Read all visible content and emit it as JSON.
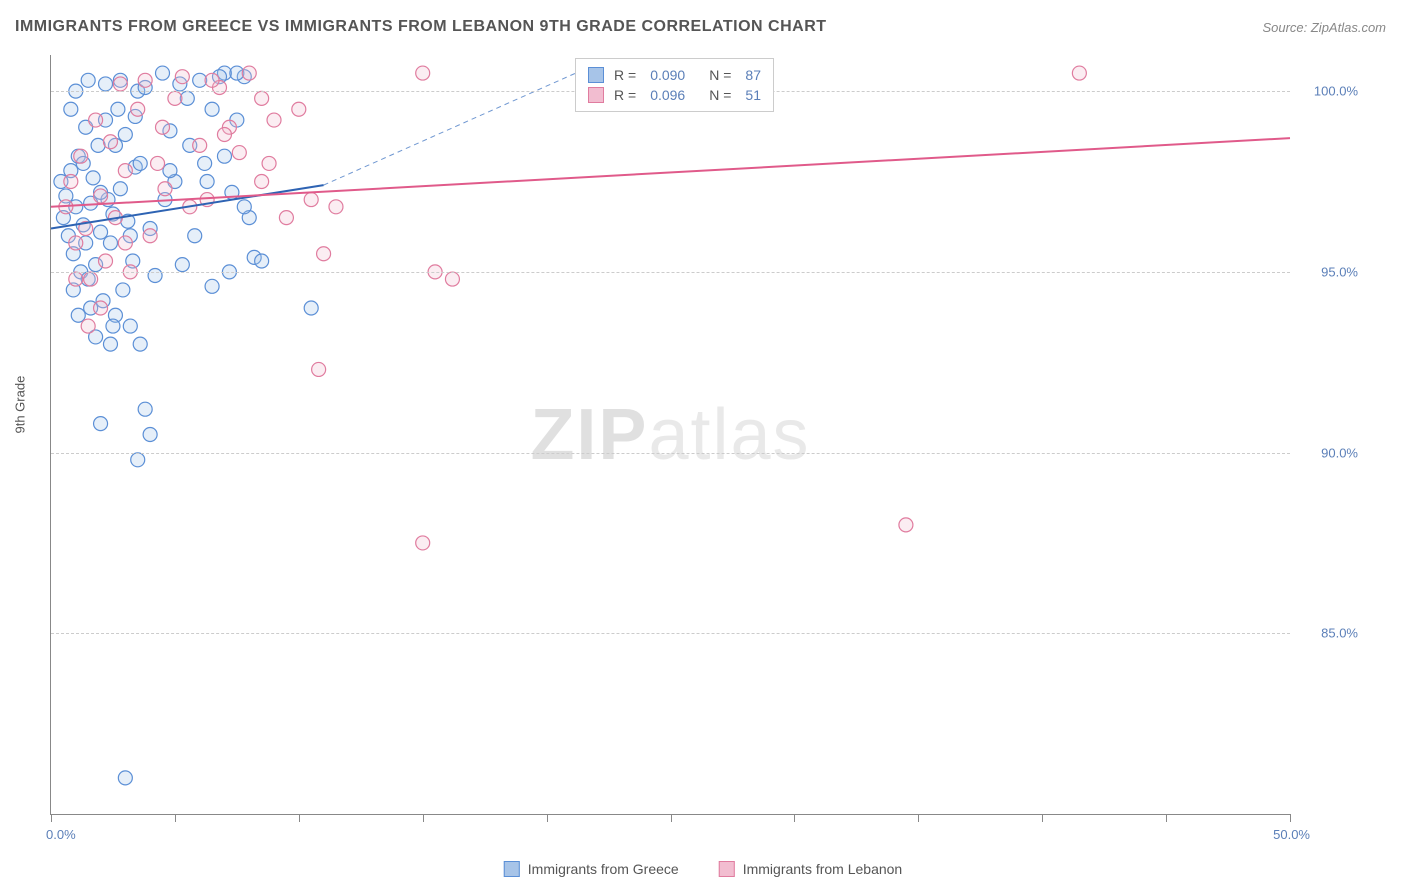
{
  "title": "IMMIGRANTS FROM GREECE VS IMMIGRANTS FROM LEBANON 9TH GRADE CORRELATION CHART",
  "source_label": "Source: ZipAtlas.com",
  "watermark_a": "ZIP",
  "watermark_b": "atlas",
  "y_axis_title": "9th Grade",
  "chart": {
    "type": "scatter",
    "xlim": [
      0,
      50
    ],
    "ylim": [
      80,
      101
    ],
    "x_ticks": [
      0,
      5,
      10,
      15,
      20,
      25,
      30,
      35,
      40,
      45,
      50
    ],
    "y_gridlines": [
      85,
      90,
      95,
      100
    ],
    "y_tick_labels": [
      "85.0%",
      "90.0%",
      "95.0%",
      "100.0%"
    ],
    "x_min_label": "0.0%",
    "x_max_label": "50.0%",
    "grid_color": "#cccccc",
    "axis_color": "#888888",
    "background_color": "#ffffff",
    "marker_radius": 7,
    "marker_fill_opacity": 0.28,
    "marker_stroke_width": 1.2,
    "leader_line_color": "#6f97d1",
    "leader_line_dash": "5,4",
    "series": [
      {
        "id": "greece",
        "label": "Immigrants from Greece",
        "color_stroke": "#5b8fd6",
        "color_fill": "#a7c4e8",
        "regression": {
          "x1": 0,
          "y1": 96.2,
          "x2": 11,
          "y2": 97.4,
          "line_color": "#2e63b3",
          "line_width": 2
        },
        "stats": {
          "R": "0.090",
          "N": "87"
        },
        "points": [
          [
            0.5,
            96.5
          ],
          [
            0.6,
            97.1
          ],
          [
            0.7,
            96.0
          ],
          [
            0.8,
            97.8
          ],
          [
            0.9,
            95.5
          ],
          [
            1.0,
            96.8
          ],
          [
            1.1,
            98.2
          ],
          [
            1.2,
            95.0
          ],
          [
            1.3,
            96.3
          ],
          [
            1.4,
            99.0
          ],
          [
            1.5,
            94.8
          ],
          [
            1.6,
            96.9
          ],
          [
            1.7,
            97.6
          ],
          [
            1.8,
            95.2
          ],
          [
            1.9,
            98.5
          ],
          [
            2.0,
            96.1
          ],
          [
            2.1,
            94.2
          ],
          [
            2.2,
            100.2
          ],
          [
            2.3,
            97.0
          ],
          [
            2.4,
            95.8
          ],
          [
            2.5,
            96.6
          ],
          [
            2.6,
            93.8
          ],
          [
            2.7,
            99.5
          ],
          [
            2.8,
            97.3
          ],
          [
            2.9,
            94.5
          ],
          [
            3.0,
            98.8
          ],
          [
            3.1,
            96.4
          ],
          [
            3.2,
            93.5
          ],
          [
            3.3,
            95.3
          ],
          [
            3.4,
            97.9
          ],
          [
            3.5,
            100.0
          ],
          [
            3.6,
            93.0
          ],
          [
            3.8,
            91.2
          ],
          [
            4.0,
            90.5
          ],
          [
            4.2,
            94.9
          ],
          [
            4.5,
            100.5
          ],
          [
            4.8,
            98.9
          ],
          [
            5.0,
            97.5
          ],
          [
            5.3,
            95.2
          ],
          [
            5.5,
            99.8
          ],
          [
            5.8,
            96.0
          ],
          [
            6.0,
            100.3
          ],
          [
            6.2,
            98.0
          ],
          [
            6.5,
            94.6
          ],
          [
            7.0,
            100.5
          ],
          [
            7.3,
            97.2
          ],
          [
            7.5,
            99.2
          ],
          [
            7.8,
            100.4
          ],
          [
            8.0,
            96.5
          ],
          [
            8.2,
            95.4
          ],
          [
            3.0,
            81.0
          ],
          [
            3.5,
            89.8
          ],
          [
            2.0,
            90.8
          ],
          [
            1.8,
            93.2
          ],
          [
            2.5,
            93.5
          ],
          [
            1.5,
            100.3
          ],
          [
            2.2,
            99.2
          ],
          [
            3.8,
            100.1
          ],
          [
            6.8,
            100.4
          ],
          [
            1.0,
            100.0
          ],
          [
            0.8,
            99.5
          ],
          [
            1.3,
            98.0
          ],
          [
            1.6,
            94.0
          ],
          [
            2.4,
            93.0
          ],
          [
            3.2,
            96.0
          ],
          [
            4.6,
            97.0
          ],
          [
            5.2,
            100.2
          ],
          [
            6.5,
            99.5
          ],
          [
            7.2,
            95.0
          ],
          [
            7.8,
            96.8
          ],
          [
            0.4,
            97.5
          ],
          [
            0.9,
            94.5
          ],
          [
            1.4,
            95.8
          ],
          [
            2.0,
            97.2
          ],
          [
            2.6,
            98.5
          ],
          [
            3.4,
            99.3
          ],
          [
            4.0,
            96.2
          ],
          [
            4.8,
            97.8
          ],
          [
            5.6,
            98.5
          ],
          [
            6.3,
            97.5
          ],
          [
            7.0,
            98.2
          ],
          [
            8.5,
            95.3
          ],
          [
            7.5,
            100.5
          ],
          [
            2.8,
            100.3
          ],
          [
            3.6,
            98.0
          ],
          [
            1.1,
            93.8
          ],
          [
            10.5,
            94.0
          ]
        ]
      },
      {
        "id": "lebanon",
        "label": "Immigrants from Lebanon",
        "color_stroke": "#e07c9f",
        "color_fill": "#f2bdd0",
        "regression": {
          "x1": 0,
          "y1": 96.8,
          "x2": 50,
          "y2": 98.7,
          "line_color": "#e05a8a",
          "line_width": 2
        },
        "stats": {
          "R": "0.096",
          "N": "51"
        },
        "points": [
          [
            0.6,
            96.8
          ],
          [
            0.8,
            97.5
          ],
          [
            1.0,
            95.8
          ],
          [
            1.2,
            98.2
          ],
          [
            1.4,
            96.2
          ],
          [
            1.6,
            94.8
          ],
          [
            1.8,
            99.2
          ],
          [
            2.0,
            97.1
          ],
          [
            2.2,
            95.3
          ],
          [
            2.4,
            98.6
          ],
          [
            2.6,
            96.5
          ],
          [
            2.8,
            100.2
          ],
          [
            3.0,
            97.8
          ],
          [
            3.2,
            95.0
          ],
          [
            3.5,
            99.5
          ],
          [
            3.8,
            100.3
          ],
          [
            4.0,
            96.0
          ],
          [
            4.3,
            98.0
          ],
          [
            4.6,
            97.3
          ],
          [
            5.0,
            99.8
          ],
          [
            5.3,
            100.4
          ],
          [
            5.6,
            96.8
          ],
          [
            6.0,
            98.5
          ],
          [
            6.3,
            97.0
          ],
          [
            6.8,
            100.1
          ],
          [
            7.2,
            99.0
          ],
          [
            7.6,
            98.3
          ],
          [
            8.0,
            100.5
          ],
          [
            8.5,
            97.5
          ],
          [
            9.0,
            99.2
          ],
          [
            9.5,
            96.5
          ],
          [
            10.0,
            99.5
          ],
          [
            10.5,
            97.0
          ],
          [
            11.0,
            95.5
          ],
          [
            11.5,
            96.8
          ],
          [
            8.5,
            99.8
          ],
          [
            10.8,
            92.3
          ],
          [
            15.0,
            100.5
          ],
          [
            15.5,
            95.0
          ],
          [
            16.2,
            94.8
          ],
          [
            2.0,
            94.0
          ],
          [
            1.5,
            93.5
          ],
          [
            1.0,
            94.8
          ],
          [
            3.0,
            95.8
          ],
          [
            4.5,
            99.0
          ],
          [
            6.5,
            100.3
          ],
          [
            15.0,
            87.5
          ],
          [
            41.5,
            100.5
          ],
          [
            34.5,
            88.0
          ],
          [
            7.0,
            98.8
          ],
          [
            8.8,
            98.0
          ]
        ]
      }
    ]
  },
  "legend": {
    "greece_label": "Immigrants from Greece",
    "lebanon_label": "Immigrants from Lebanon"
  },
  "stats_box": {
    "r_label": "R =",
    "n_label": "N ="
  }
}
